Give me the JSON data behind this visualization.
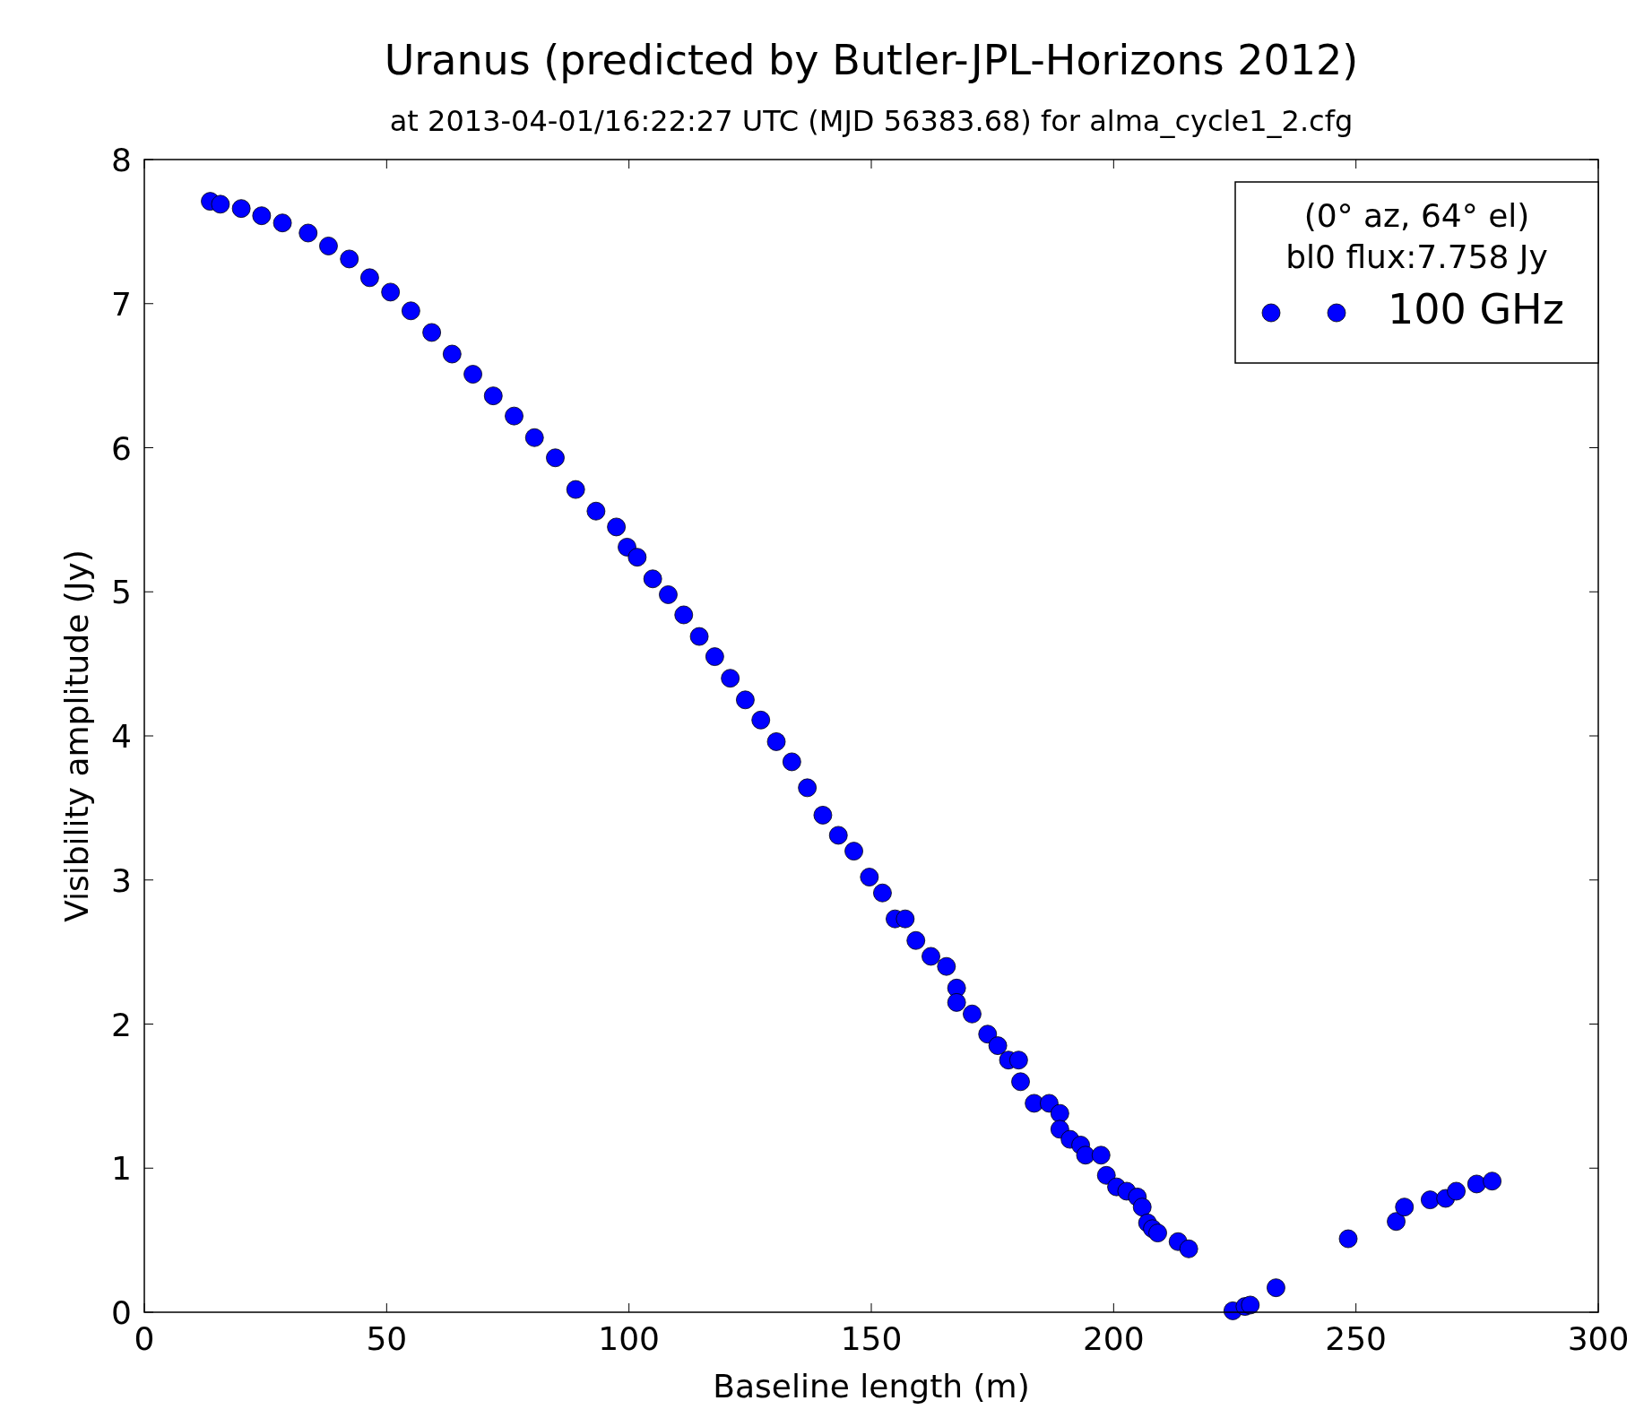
{
  "chart_data": {
    "type": "scatter",
    "title": "Uranus (predicted by Butler-JPL-Horizons 2012)",
    "subtitle": "at 2013-04-01/16:22:27 UTC (MJD 56383.68) for alma_cycle1_2.cfg",
    "xlabel": "Baseline length (m)",
    "ylabel": "Visibility amplitude (Jy)",
    "legend_title": "(0°  az, 64°  el)\nbl0 flux:7.758 Jy",
    "legend": "top right",
    "marker": "circle",
    "grid": false,
    "xlim": [
      0,
      300
    ],
    "ylim": [
      0,
      8
    ],
    "xticks": [
      0,
      50,
      100,
      150,
      200,
      250,
      300
    ],
    "yticks": [
      0,
      1,
      2,
      3,
      4,
      5,
      6,
      7,
      8
    ],
    "series": [
      {
        "name": "100 GHz",
        "color": "#0000ff",
        "x": [
          13.6,
          15.7,
          20,
          24.2,
          28.5,
          33.8,
          38,
          42.3,
          46.5,
          50.8,
          55,
          59.3,
          63.5,
          67.8,
          72,
          76.3,
          80.5,
          84.8,
          89,
          93.2,
          97.4,
          99.6,
          101.7,
          104.9,
          108.1,
          111.3,
          114.5,
          117.7,
          120.9,
          124,
          127.2,
          130.4,
          133.6,
          136.8,
          140,
          143.2,
          146.4,
          149.6,
          152.3,
          154.9,
          157,
          159.2,
          162.3,
          165.5,
          167.6,
          167.6,
          170.8,
          174,
          176.1,
          178.3,
          180.4,
          180.8,
          183.6,
          186.7,
          188.9,
          188.9,
          191,
          193.2,
          194.2,
          197.4,
          198.5,
          200.6,
          202.7,
          204.9,
          205.9,
          207,
          208,
          209.1,
          213.3,
          215.5,
          224.6,
          227.1,
          228.2,
          233.5,
          248.4,
          258.3,
          260,
          265.3,
          268.5,
          270.7,
          274.9,
          278.1
        ],
        "values": [
          7.71,
          7.69,
          7.66,
          7.61,
          7.56,
          7.49,
          7.4,
          7.31,
          7.18,
          7.08,
          6.95,
          6.8,
          6.65,
          6.51,
          6.36,
          6.22,
          6.07,
          5.93,
          5.71,
          5.56,
          5.45,
          5.31,
          5.24,
          5.09,
          4.98,
          4.84,
          4.69,
          4.55,
          4.4,
          4.25,
          4.11,
          3.96,
          3.82,
          3.64,
          3.45,
          3.31,
          3.2,
          3.02,
          2.91,
          2.73,
          2.73,
          2.58,
          2.47,
          2.4,
          2.25,
          2.15,
          2.07,
          1.93,
          1.85,
          1.75,
          1.75,
          1.6,
          1.45,
          1.45,
          1.38,
          1.27,
          1.2,
          1.16,
          1.09,
          1.09,
          0.95,
          0.87,
          0.84,
          0.8,
          0.73,
          0.62,
          0.58,
          0.55,
          0.49,
          0.44,
          0.01,
          0.04,
          0.05,
          0.17,
          0.51,
          0.63,
          0.73,
          0.78,
          0.79,
          0.84,
          0.89,
          0.91
        ]
      }
    ]
  }
}
